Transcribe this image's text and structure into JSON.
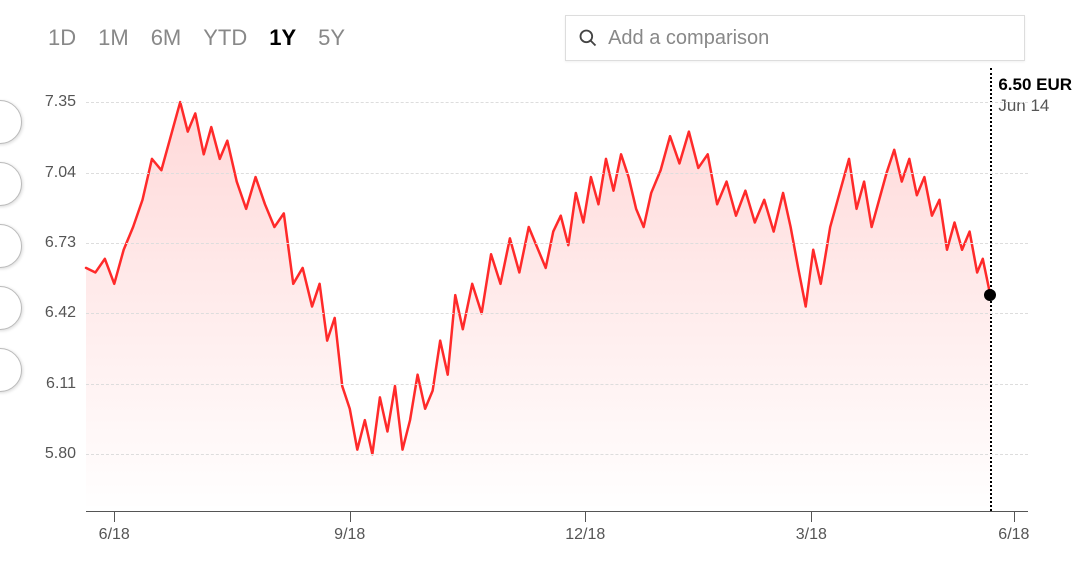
{
  "range_tabs": {
    "items": [
      "1D",
      "1M",
      "6M",
      "YTD",
      "1Y",
      "5Y"
    ],
    "active_index": 4
  },
  "search": {
    "placeholder": "Add a comparison"
  },
  "chart": {
    "type": "line-area",
    "line_color": "#ff2a2a",
    "line_width": 2.5,
    "area_gradient_top": "rgba(255,42,42,0.18)",
    "area_gradient_bottom": "rgba(255,42,42,0.00)",
    "grid_color": "#dddddd",
    "axis_color": "#555555",
    "background_color": "#ffffff",
    "y": {
      "min": 5.55,
      "max": 7.5,
      "ticks": [
        7.35,
        7.04,
        6.73,
        6.42,
        6.11,
        5.8
      ],
      "tick_labels": [
        "7.35",
        "7.04",
        "6.73",
        "6.42",
        "6.11",
        "5.80"
      ]
    },
    "x": {
      "min": 0,
      "max": 1,
      "ticks": [
        0.03,
        0.28,
        0.53,
        0.77,
        0.985
      ],
      "tick_labels": [
        "6/18",
        "9/18",
        "12/18",
        "3/18",
        "6/18"
      ]
    },
    "callout": {
      "x": 0.96,
      "price_label": "6.50 EUR",
      "date_label": "Jun 14",
      "dot_value": 6.5
    },
    "series": [
      {
        "x": 0.0,
        "y": 6.62
      },
      {
        "x": 0.01,
        "y": 6.6
      },
      {
        "x": 0.02,
        "y": 6.66
      },
      {
        "x": 0.03,
        "y": 6.55
      },
      {
        "x": 0.04,
        "y": 6.7
      },
      {
        "x": 0.05,
        "y": 6.8
      },
      {
        "x": 0.06,
        "y": 6.92
      },
      {
        "x": 0.07,
        "y": 7.1
      },
      {
        "x": 0.08,
        "y": 7.05
      },
      {
        "x": 0.09,
        "y": 7.2
      },
      {
        "x": 0.1,
        "y": 7.35
      },
      {
        "x": 0.108,
        "y": 7.22
      },
      {
        "x": 0.116,
        "y": 7.3
      },
      {
        "x": 0.125,
        "y": 7.12
      },
      {
        "x": 0.133,
        "y": 7.24
      },
      {
        "x": 0.142,
        "y": 7.1
      },
      {
        "x": 0.15,
        "y": 7.18
      },
      {
        "x": 0.16,
        "y": 7.0
      },
      {
        "x": 0.17,
        "y": 6.88
      },
      {
        "x": 0.18,
        "y": 7.02
      },
      {
        "x": 0.19,
        "y": 6.9
      },
      {
        "x": 0.2,
        "y": 6.8
      },
      {
        "x": 0.21,
        "y": 6.86
      },
      {
        "x": 0.22,
        "y": 6.55
      },
      {
        "x": 0.23,
        "y": 6.62
      },
      {
        "x": 0.24,
        "y": 6.45
      },
      {
        "x": 0.248,
        "y": 6.55
      },
      {
        "x": 0.256,
        "y": 6.3
      },
      {
        "x": 0.264,
        "y": 6.4
      },
      {
        "x": 0.272,
        "y": 6.1
      },
      {
        "x": 0.28,
        "y": 6.0
      },
      {
        "x": 0.288,
        "y": 5.82
      },
      {
        "x": 0.296,
        "y": 5.95
      },
      {
        "x": 0.304,
        "y": 5.8
      },
      {
        "x": 0.312,
        "y": 6.05
      },
      {
        "x": 0.32,
        "y": 5.9
      },
      {
        "x": 0.328,
        "y": 6.1
      },
      {
        "x": 0.336,
        "y": 5.82
      },
      {
        "x": 0.344,
        "y": 5.95
      },
      {
        "x": 0.352,
        "y": 6.15
      },
      {
        "x": 0.36,
        "y": 6.0
      },
      {
        "x": 0.368,
        "y": 6.08
      },
      {
        "x": 0.376,
        "y": 6.3
      },
      {
        "x": 0.384,
        "y": 6.15
      },
      {
        "x": 0.392,
        "y": 6.5
      },
      {
        "x": 0.4,
        "y": 6.35
      },
      {
        "x": 0.41,
        "y": 6.55
      },
      {
        "x": 0.42,
        "y": 6.42
      },
      {
        "x": 0.43,
        "y": 6.68
      },
      {
        "x": 0.44,
        "y": 6.55
      },
      {
        "x": 0.45,
        "y": 6.75
      },
      {
        "x": 0.46,
        "y": 6.6
      },
      {
        "x": 0.47,
        "y": 6.8
      },
      {
        "x": 0.48,
        "y": 6.7
      },
      {
        "x": 0.488,
        "y": 6.62
      },
      {
        "x": 0.496,
        "y": 6.78
      },
      {
        "x": 0.504,
        "y": 6.85
      },
      {
        "x": 0.512,
        "y": 6.72
      },
      {
        "x": 0.52,
        "y": 6.95
      },
      {
        "x": 0.528,
        "y": 6.82
      },
      {
        "x": 0.536,
        "y": 7.02
      },
      {
        "x": 0.544,
        "y": 6.9
      },
      {
        "x": 0.552,
        "y": 7.1
      },
      {
        "x": 0.56,
        "y": 6.96
      },
      {
        "x": 0.568,
        "y": 7.12
      },
      {
        "x": 0.576,
        "y": 7.02
      },
      {
        "x": 0.584,
        "y": 6.88
      },
      {
        "x": 0.592,
        "y": 6.8
      },
      {
        "x": 0.6,
        "y": 6.95
      },
      {
        "x": 0.61,
        "y": 7.05
      },
      {
        "x": 0.62,
        "y": 7.2
      },
      {
        "x": 0.63,
        "y": 7.08
      },
      {
        "x": 0.64,
        "y": 7.22
      },
      {
        "x": 0.65,
        "y": 7.06
      },
      {
        "x": 0.66,
        "y": 7.12
      },
      {
        "x": 0.67,
        "y": 6.9
      },
      {
        "x": 0.68,
        "y": 7.0
      },
      {
        "x": 0.69,
        "y": 6.85
      },
      {
        "x": 0.7,
        "y": 6.96
      },
      {
        "x": 0.71,
        "y": 6.82
      },
      {
        "x": 0.72,
        "y": 6.92
      },
      {
        "x": 0.73,
        "y": 6.78
      },
      {
        "x": 0.74,
        "y": 6.95
      },
      {
        "x": 0.748,
        "y": 6.8
      },
      {
        "x": 0.756,
        "y": 6.62
      },
      {
        "x": 0.764,
        "y": 6.45
      },
      {
        "x": 0.772,
        "y": 6.7
      },
      {
        "x": 0.78,
        "y": 6.55
      },
      {
        "x": 0.79,
        "y": 6.8
      },
      {
        "x": 0.8,
        "y": 6.95
      },
      {
        "x": 0.81,
        "y": 7.1
      },
      {
        "x": 0.818,
        "y": 6.88
      },
      {
        "x": 0.826,
        "y": 7.0
      },
      {
        "x": 0.834,
        "y": 6.8
      },
      {
        "x": 0.842,
        "y": 6.92
      },
      {
        "x": 0.85,
        "y": 7.04
      },
      {
        "x": 0.858,
        "y": 7.14
      },
      {
        "x": 0.866,
        "y": 7.0
      },
      {
        "x": 0.874,
        "y": 7.1
      },
      {
        "x": 0.882,
        "y": 6.94
      },
      {
        "x": 0.89,
        "y": 7.02
      },
      {
        "x": 0.898,
        "y": 6.85
      },
      {
        "x": 0.906,
        "y": 6.92
      },
      {
        "x": 0.914,
        "y": 6.7
      },
      {
        "x": 0.922,
        "y": 6.82
      },
      {
        "x": 0.93,
        "y": 6.7
      },
      {
        "x": 0.938,
        "y": 6.78
      },
      {
        "x": 0.946,
        "y": 6.6
      },
      {
        "x": 0.952,
        "y": 6.66
      },
      {
        "x": 0.96,
        "y": 6.5
      }
    ]
  }
}
